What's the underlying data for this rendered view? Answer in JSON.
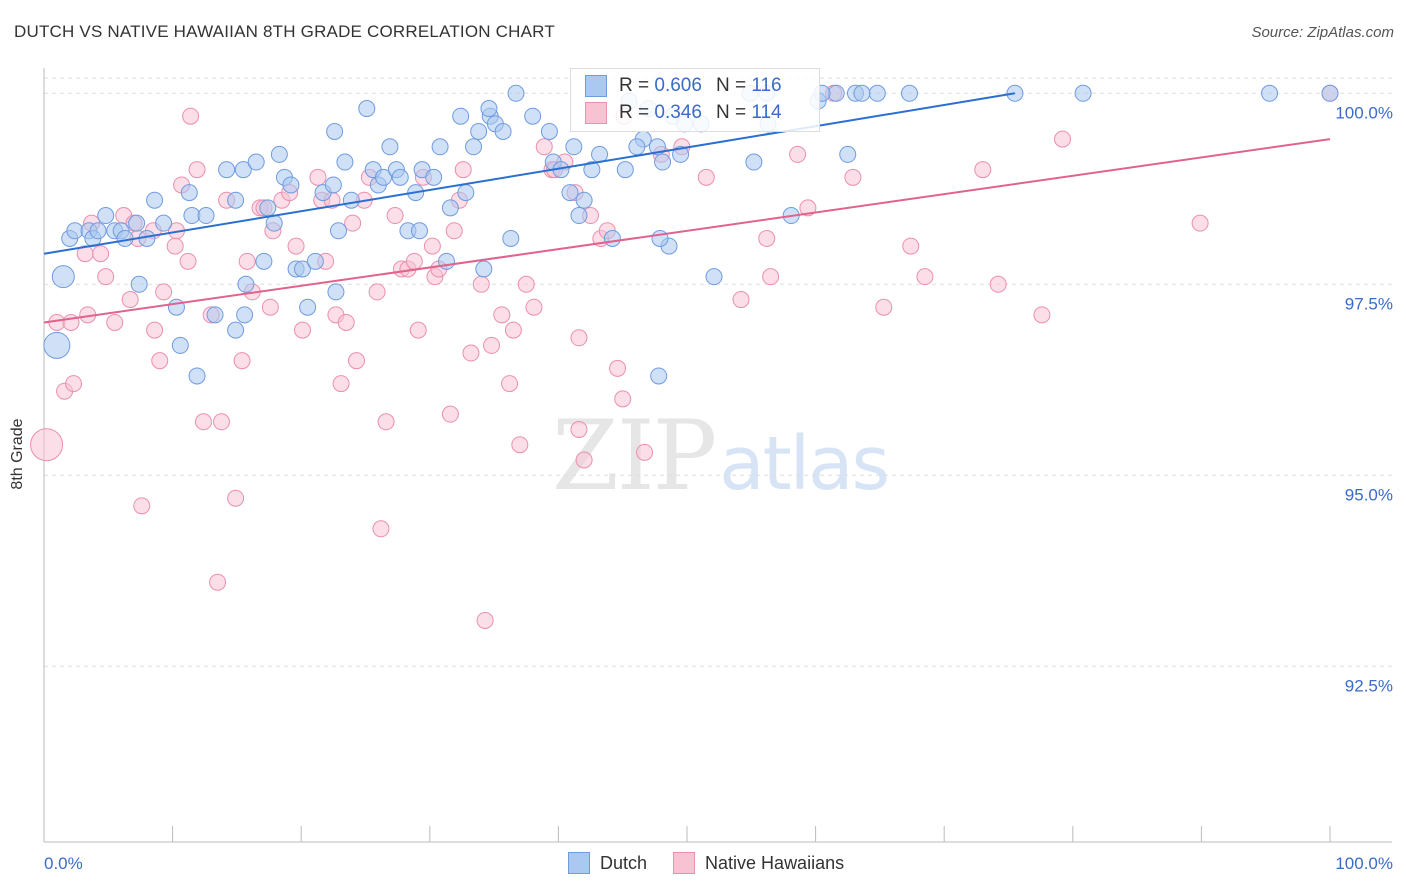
{
  "header": {
    "title": "DUTCH VS NATIVE HAWAIIAN 8TH GRADE CORRELATION CHART",
    "source": "Source: ZipAtlas.com"
  },
  "watermark": {
    "zip": "ZIP",
    "atlas": "atlas"
  },
  "legend": {
    "dutch": {
      "r_label": "R =",
      "r_value": "0.606",
      "n_label": "N =",
      "n_value": "116",
      "color": "#6f9be0"
    },
    "native": {
      "r_label": "R =",
      "r_value": "0.346",
      "n_label": "N =",
      "n_value": "114",
      "color": "#f0a0bc"
    }
  },
  "bottom_legend": {
    "dutch": "Dutch",
    "native": "Native Hawaiians"
  },
  "colors": {
    "dutch_fill": "#aac8f0",
    "dutch_stroke": "#6f9be0",
    "dutch_line": "#2b6fd1",
    "native_fill": "#f7c3d3",
    "native_stroke": "#ec8fae",
    "native_line": "#e0638e",
    "tick_text": "#3a6bc9",
    "grid": "#dddddd"
  },
  "chart_data": {
    "type": "scatter",
    "title": "DUTCH VS NATIVE HAWAIIAN 8TH GRADE CORRELATION CHART",
    "xlabel": "",
    "ylabel": "8th Grade",
    "xlim": [
      0,
      100
    ],
    "ylim": [
      90.2,
      100.2
    ],
    "x_tick_labels": [
      "0.0%",
      "100.0%"
    ],
    "y_ticks": [
      92.5,
      95.0,
      97.5,
      100.0
    ],
    "y_tick_labels": [
      "92.5%",
      "95.0%",
      "97.5%",
      "100.0%"
    ],
    "grid": true,
    "series": [
      {
        "name": "Dutch",
        "trend": {
          "x": [
            0,
            75.5
          ],
          "y": [
            97.9,
            100.0
          ]
        },
        "points": [
          [
            1.5,
            97.6
          ],
          [
            1.0,
            96.7
          ],
          [
            2,
            98.1
          ],
          [
            2.4,
            98.2
          ],
          [
            3.5,
            98.2
          ],
          [
            3.8,
            98.1
          ],
          [
            4.2,
            98.2
          ],
          [
            4.8,
            98.4
          ],
          [
            5.5,
            98.2
          ],
          [
            6.0,
            98.2
          ],
          [
            6.3,
            98.1
          ],
          [
            7.2,
            98.3
          ],
          [
            8,
            98.1
          ],
          [
            8.6,
            98.6
          ],
          [
            9.3,
            98.3
          ],
          [
            7.4,
            97.5
          ],
          [
            10.3,
            97.2
          ],
          [
            10.6,
            96.7
          ],
          [
            11.3,
            98.7
          ],
          [
            11.5,
            98.4
          ],
          [
            12.6,
            98.4
          ],
          [
            13.3,
            97.1
          ],
          [
            14.2,
            99.0
          ],
          [
            14.9,
            98.6
          ],
          [
            15.5,
            99.0
          ],
          [
            15.7,
            97.5
          ],
          [
            16.5,
            99.1
          ],
          [
            17.1,
            97.8
          ],
          [
            17.4,
            98.5
          ],
          [
            17.9,
            98.3
          ],
          [
            18.3,
            99.2
          ],
          [
            18.7,
            98.9
          ],
          [
            19.2,
            98.8
          ],
          [
            19.6,
            97.7
          ],
          [
            20.1,
            97.7
          ],
          [
            20.5,
            97.2
          ],
          [
            21.1,
            97.8
          ],
          [
            21.7,
            98.7
          ],
          [
            22.5,
            98.8
          ],
          [
            22.7,
            97.4
          ],
          [
            22.6,
            99.5
          ],
          [
            23.4,
            99.1
          ],
          [
            23.9,
            98.6
          ],
          [
            25.1,
            99.8
          ],
          [
            25.6,
            99.0
          ],
          [
            26.0,
            98.8
          ],
          [
            26.4,
            98.9
          ],
          [
            26.9,
            99.3
          ],
          [
            27.4,
            99.0
          ],
          [
            27.7,
            98.9
          ],
          [
            28.3,
            98.2
          ],
          [
            28.9,
            98.7
          ],
          [
            29.4,
            99.0
          ],
          [
            30.3,
            98.9
          ],
          [
            30.8,
            99.3
          ],
          [
            31.3,
            97.8
          ],
          [
            31.6,
            98.5
          ],
          [
            32.4,
            99.7
          ],
          [
            32.8,
            98.7
          ],
          [
            33.4,
            99.3
          ],
          [
            33.8,
            99.5
          ],
          [
            34.2,
            97.7
          ],
          [
            34.7,
            99.7
          ],
          [
            35.1,
            99.6
          ],
          [
            35.7,
            99.5
          ],
          [
            36.3,
            98.1
          ],
          [
            36.7,
            100.0
          ],
          [
            38.0,
            99.7
          ],
          [
            39.3,
            99.5
          ],
          [
            39.6,
            99.1
          ],
          [
            40.2,
            99.0
          ],
          [
            40.9,
            98.7
          ],
          [
            41.2,
            99.3
          ],
          [
            41.6,
            98.4
          ],
          [
            42.0,
            98.6
          ],
          [
            42.6,
            99.0
          ],
          [
            43.2,
            99.2
          ],
          [
            44.2,
            98.1
          ],
          [
            45.2,
            99.0
          ],
          [
            45.5,
            99.9
          ],
          [
            46.6,
            99.4
          ],
          [
            46.1,
            99.3
          ],
          [
            48.1,
            99.1
          ],
          [
            48.9,
            99.7
          ],
          [
            49.8,
            99.6
          ],
          [
            51.1,
            99.6
          ],
          [
            52.1,
            97.6
          ],
          [
            55.2,
            99.1
          ],
          [
            58.1,
            98.4
          ],
          [
            56.3,
            99.6
          ],
          [
            60.2,
            99.9
          ],
          [
            61.6,
            100.0
          ],
          [
            63.1,
            100.0
          ],
          [
            64.8,
            100.0
          ],
          [
            62.5,
            99.2
          ],
          [
            67.3,
            100.0
          ],
          [
            75.5,
            100.0
          ],
          [
            80.8,
            100.0
          ],
          [
            95.3,
            100.0
          ],
          [
            100.0,
            100.0
          ],
          [
            47.7,
            99.3
          ],
          [
            47.8,
            96.3
          ],
          [
            48.6,
            98.0
          ],
          [
            47.9,
            98.1
          ],
          [
            47.0,
            99.8
          ],
          [
            49.5,
            99.2
          ],
          [
            54.9,
            100.0
          ],
          [
            56.2,
            100.0
          ],
          [
            60.5,
            100.0
          ],
          [
            63.6,
            100.0
          ],
          [
            29.2,
            98.2
          ],
          [
            15.6,
            97.1
          ],
          [
            11.9,
            96.3
          ],
          [
            14.9,
            96.9
          ],
          [
            22.9,
            98.2
          ],
          [
            34.6,
            99.8
          ]
        ]
      },
      {
        "name": "Native Hawaiians",
        "trend": {
          "x": [
            0,
            100
          ],
          "y": [
            97.0,
            99.4
          ]
        },
        "points": [
          [
            0.2,
            95.4
          ],
          [
            1.0,
            97.0
          ],
          [
            1.6,
            96.1
          ],
          [
            2.1,
            97.0
          ],
          [
            2.3,
            96.2
          ],
          [
            3.2,
            97.9
          ],
          [
            3.4,
            97.1
          ],
          [
            3.7,
            98.3
          ],
          [
            4.4,
            97.9
          ],
          [
            4.8,
            97.6
          ],
          [
            5.5,
            97.0
          ],
          [
            6.2,
            98.4
          ],
          [
            6.7,
            97.3
          ],
          [
            7.0,
            98.3
          ],
          [
            7.3,
            98.1
          ],
          [
            7.6,
            94.6
          ],
          [
            8.5,
            98.2
          ],
          [
            8.6,
            96.9
          ],
          [
            9.0,
            96.5
          ],
          [
            9.3,
            97.4
          ],
          [
            10.2,
            98.0
          ],
          [
            10.3,
            98.2
          ],
          [
            10.7,
            98.8
          ],
          [
            11.2,
            97.8
          ],
          [
            11.4,
            99.7
          ],
          [
            11.9,
            99.0
          ],
          [
            12.4,
            95.7
          ],
          [
            13.0,
            97.1
          ],
          [
            13.5,
            93.6
          ],
          [
            13.8,
            95.7
          ],
          [
            14.2,
            98.6
          ],
          [
            14.9,
            94.7
          ],
          [
            15.4,
            96.5
          ],
          [
            15.8,
            97.8
          ],
          [
            16.2,
            97.4
          ],
          [
            16.8,
            98.5
          ],
          [
            17.1,
            98.5
          ],
          [
            17.6,
            97.2
          ],
          [
            17.8,
            98.2
          ],
          [
            18.5,
            98.6
          ],
          [
            19.1,
            98.7
          ],
          [
            19.6,
            98.0
          ],
          [
            20.1,
            96.9
          ],
          [
            21.3,
            98.9
          ],
          [
            21.6,
            98.6
          ],
          [
            21.9,
            97.8
          ],
          [
            22.4,
            98.6
          ],
          [
            22.7,
            97.1
          ],
          [
            23.1,
            96.2
          ],
          [
            23.5,
            97.0
          ],
          [
            24.0,
            98.3
          ],
          [
            24.3,
            96.5
          ],
          [
            24.9,
            98.6
          ],
          [
            25.3,
            98.9
          ],
          [
            25.9,
            97.4
          ],
          [
            26.2,
            94.3
          ],
          [
            26.6,
            95.7
          ],
          [
            27.3,
            98.4
          ],
          [
            27.8,
            97.7
          ],
          [
            28.3,
            97.7
          ],
          [
            28.8,
            97.8
          ],
          [
            29.1,
            96.9
          ],
          [
            29.5,
            98.9
          ],
          [
            30.2,
            98.0
          ],
          [
            30.4,
            97.6
          ],
          [
            30.7,
            97.7
          ],
          [
            31.6,
            95.8
          ],
          [
            31.9,
            98.2
          ],
          [
            32.3,
            98.6
          ],
          [
            32.6,
            99.0
          ],
          [
            33.2,
            96.6
          ],
          [
            34.0,
            97.5
          ],
          [
            34.3,
            93.1
          ],
          [
            34.8,
            96.7
          ],
          [
            35.6,
            97.1
          ],
          [
            36.2,
            96.2
          ],
          [
            37.0,
            95.4
          ],
          [
            37.5,
            97.5
          ],
          [
            38.1,
            97.2
          ],
          [
            38.9,
            99.3
          ],
          [
            39.5,
            99.0
          ],
          [
            39.7,
            99.0
          ],
          [
            40.5,
            99.1
          ],
          [
            41.3,
            98.7
          ],
          [
            41.6,
            96.8
          ],
          [
            42.0,
            95.2
          ],
          [
            42.5,
            98.4
          ],
          [
            43.3,
            98.1
          ],
          [
            43.8,
            98.2
          ],
          [
            44.6,
            96.4
          ],
          [
            45.0,
            96.0
          ],
          [
            46.7,
            95.3
          ],
          [
            48.0,
            99.2
          ],
          [
            49.6,
            99.3
          ],
          [
            51.5,
            98.9
          ],
          [
            54.2,
            97.3
          ],
          [
            56.2,
            98.1
          ],
          [
            56.5,
            97.6
          ],
          [
            58.6,
            99.2
          ],
          [
            59.4,
            98.5
          ],
          [
            61.4,
            100.0
          ],
          [
            62.9,
            98.9
          ],
          [
            65.3,
            97.2
          ],
          [
            67.4,
            98.0
          ],
          [
            68.5,
            97.6
          ],
          [
            73.0,
            99.0
          ],
          [
            74.2,
            97.5
          ],
          [
            77.6,
            97.1
          ],
          [
            79.2,
            99.4
          ],
          [
            89.9,
            98.3
          ],
          [
            100.0,
            100.0
          ],
          [
            45.1,
            99.7
          ],
          [
            41.6,
            95.6
          ],
          [
            36.5,
            96.9
          ]
        ]
      }
    ]
  }
}
